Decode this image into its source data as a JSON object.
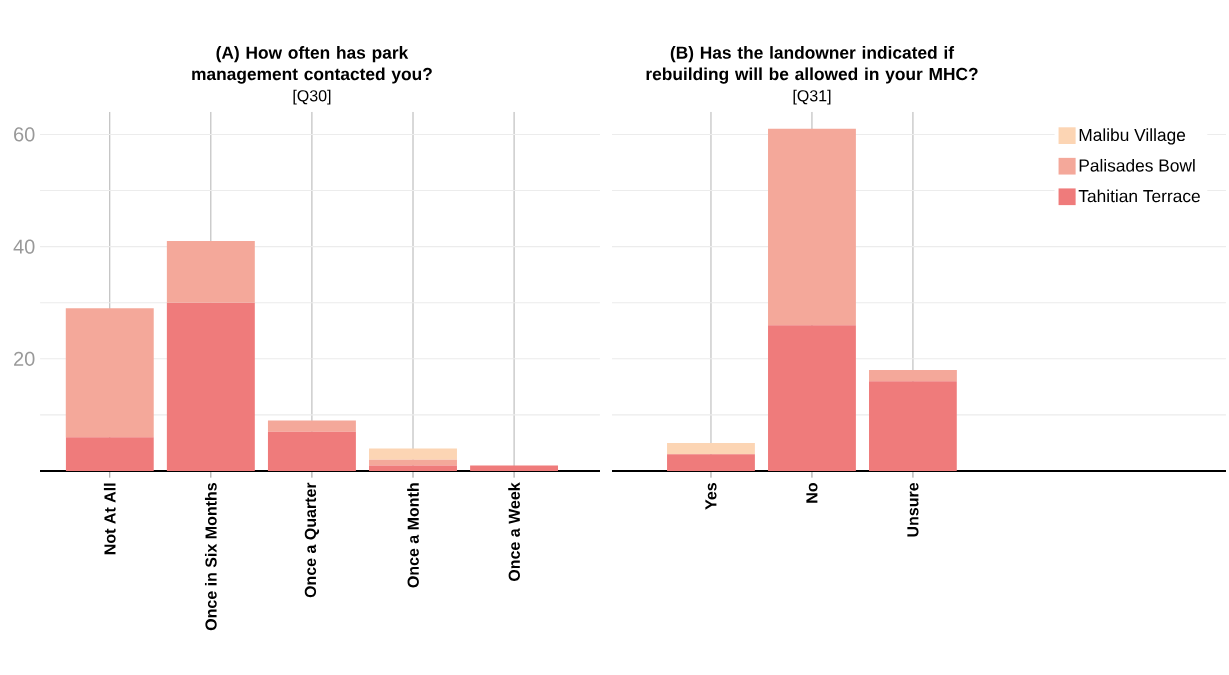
{
  "chart_data": [
    {
      "type": "bar",
      "title": "(A) How often has park management contacted you?",
      "subtitle": "[Q30]",
      "categories": [
        "Not At All",
        "Once in Six Months",
        "Once a Quarter",
        "Once a Month",
        "Once a Week"
      ],
      "stacked": true,
      "grid": true,
      "ylim": [
        0,
        64
      ],
      "yticks": [
        {
          "value": 10,
          "label": null
        },
        20,
        {
          "value": 30,
          "label": null
        },
        40,
        {
          "value": 50,
          "label": null
        },
        60
      ],
      "series": [
        {
          "color": "#ef7b7b",
          "values": [
            6,
            30,
            7,
            1,
            1
          ]
        },
        {
          "color": "#f4a89a",
          "values": [
            23,
            11,
            2,
            1,
            0
          ]
        },
        {
          "color": "#fcd5b4",
          "values": [
            0,
            0,
            0,
            2,
            0
          ]
        }
      ]
    },
    {
      "type": "bar",
      "title": "(B) Has the landowner indicated if rebuilding will be allowed in your MHC?",
      "subtitle": "[Q31]",
      "categories": [
        "Yes",
        "No",
        "Unsure"
      ],
      "stacked": true,
      "grid": true,
      "legend": "top right",
      "tick_labels": "x",
      "ylim": [
        0,
        64
      ],
      "yticks": [
        {
          "value": 10,
          "label": null
        },
        20,
        {
          "value": 30,
          "label": null
        },
        40,
        {
          "value": 50,
          "label": null
        },
        60
      ],
      "series": [
        {
          "name": "Tahitian Terrace",
          "color": "#ef7b7b",
          "values": [
            3,
            26,
            16
          ]
        },
        {
          "name": "Palisades Bowl",
          "color": "#f4a89a",
          "values": [
            0,
            35,
            2
          ]
        },
        {
          "name": "Malibu Village",
          "color": "#fcd5b4",
          "values": [
            2,
            0,
            0
          ]
        }
      ]
    }
  ]
}
